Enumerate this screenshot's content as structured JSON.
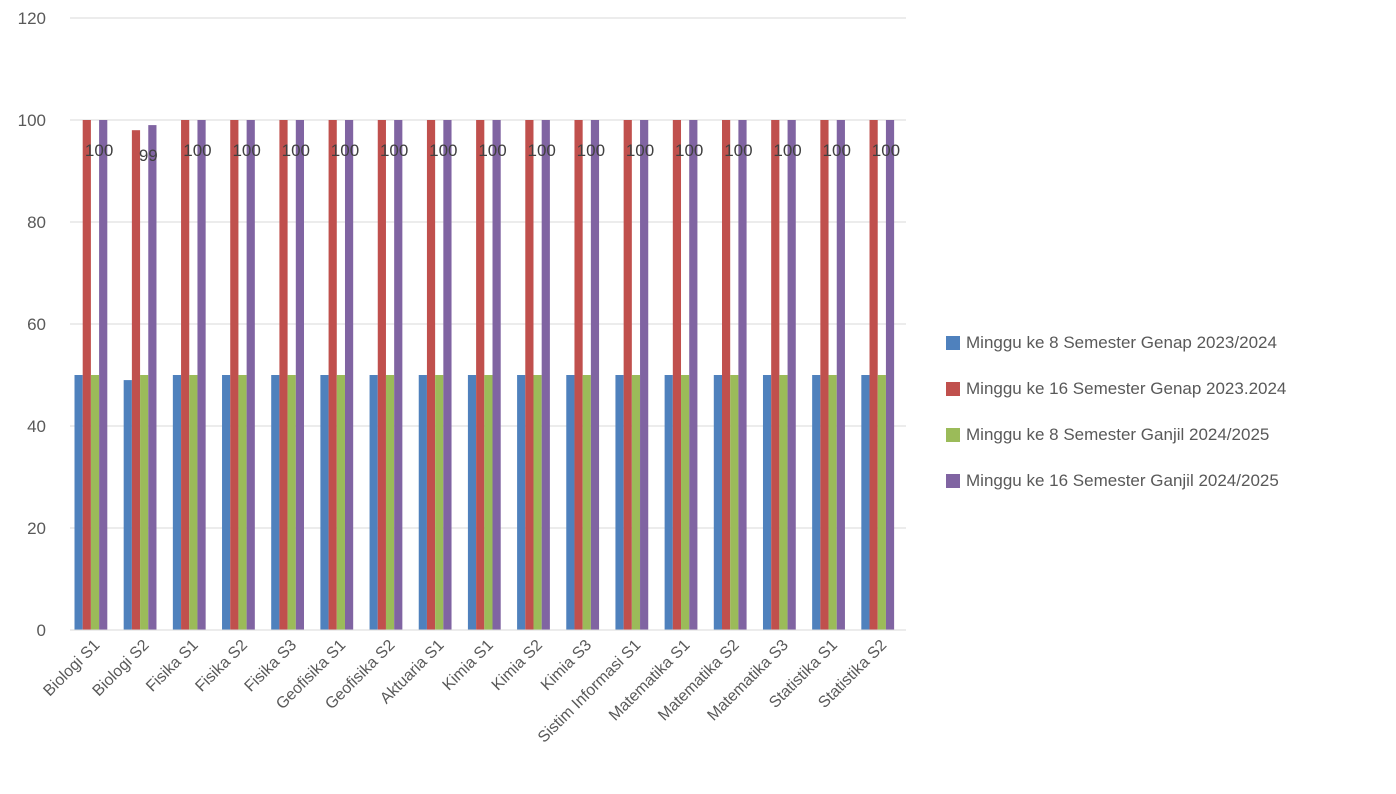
{
  "chart_data": {
    "type": "bar",
    "categories": [
      "Biologi S1",
      "Biologi S2",
      "Fisika S1",
      "Fisika S2",
      "Fisika S3",
      "Geofisika S1",
      "Geofisika S2",
      "Aktuaria S1",
      "Kimia S1",
      "Kimia S2",
      "Kimia S3",
      "Sistim Informasi S1",
      "Matematika S1",
      "Matematika S2",
      "Matematika S3",
      "Statistika S1",
      "Statistika S2"
    ],
    "series": [
      {
        "name": "Minggu ke 8 Semester Genap 2023/2024",
        "color": "#4F81BD",
        "values": [
          50,
          49,
          50,
          50,
          50,
          50,
          50,
          50,
          50,
          50,
          50,
          50,
          50,
          50,
          50,
          50,
          50
        ]
      },
      {
        "name": "Minggu ke 16 Semester Genap 2023.2024",
        "color": "#C0504D",
        "values": [
          100,
          98,
          100,
          100,
          100,
          100,
          100,
          100,
          100,
          100,
          100,
          100,
          100,
          100,
          100,
          100,
          100
        ]
      },
      {
        "name": "Minggu ke 8 Semester Ganjil 2024/2025",
        "color": "#9BBB59",
        "values": [
          50,
          50,
          50,
          50,
          50,
          50,
          50,
          50,
          50,
          50,
          50,
          50,
          50,
          50,
          50,
          50,
          50
        ]
      },
      {
        "name": "Minggu ke 16 Semester Ganjil 2024/2025",
        "color": "#8064A2",
        "values": [
          100,
          99,
          100,
          100,
          100,
          100,
          100,
          100,
          100,
          100,
          100,
          100,
          100,
          100,
          100,
          100,
          100
        ]
      }
    ],
    "data_labels": [
      "100",
      "99",
      "100",
      "100",
      "100",
      "100",
      "100",
      "100",
      "100",
      "100",
      "100",
      "100",
      "100",
      "100",
      "100",
      "100",
      "100"
    ],
    "ylim": [
      0,
      120
    ],
    "yticks": [
      0,
      20,
      40,
      60,
      80,
      100,
      120
    ],
    "grid": true,
    "legend_position": "right"
  }
}
